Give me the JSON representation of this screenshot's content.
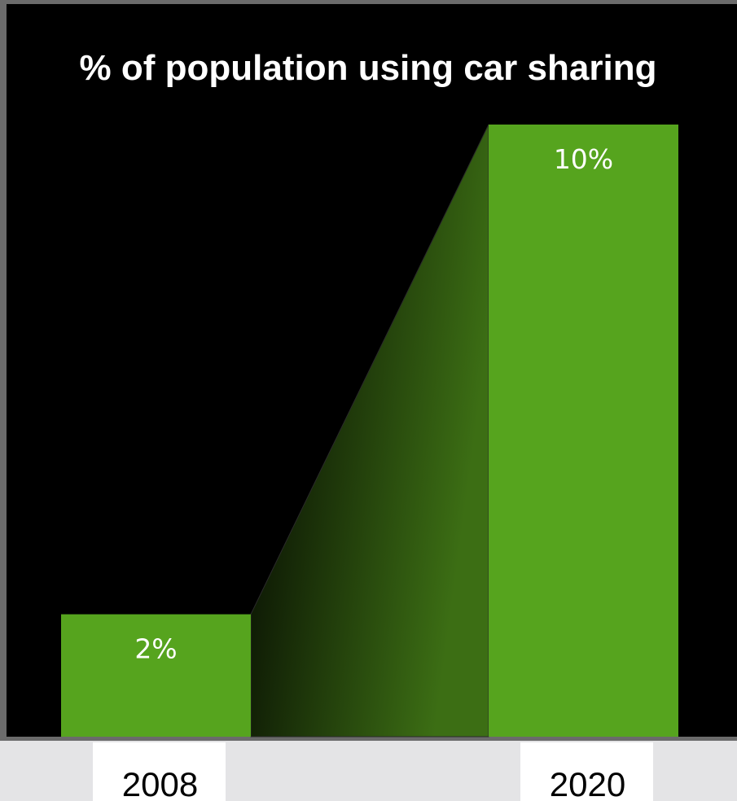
{
  "chart_data": {
    "type": "bar",
    "title": "% of population using car sharing",
    "categories": [
      "2008",
      "2020"
    ],
    "values": [
      2,
      10
    ],
    "data_labels": [
      "2%",
      "10%"
    ],
    "ylim": [
      0,
      10
    ],
    "xlabel": "",
    "ylabel": "",
    "grid": false,
    "legend": "none",
    "colors": {
      "bar": "#56a41e",
      "plot_background": "#000000",
      "frame": "#6b6b6b",
      "page_background": "#e4e4e6",
      "tick_label_background": "#ffffff",
      "title": "#ffffff",
      "data_label": "#ffffff",
      "tick_label": "#000000"
    }
  }
}
